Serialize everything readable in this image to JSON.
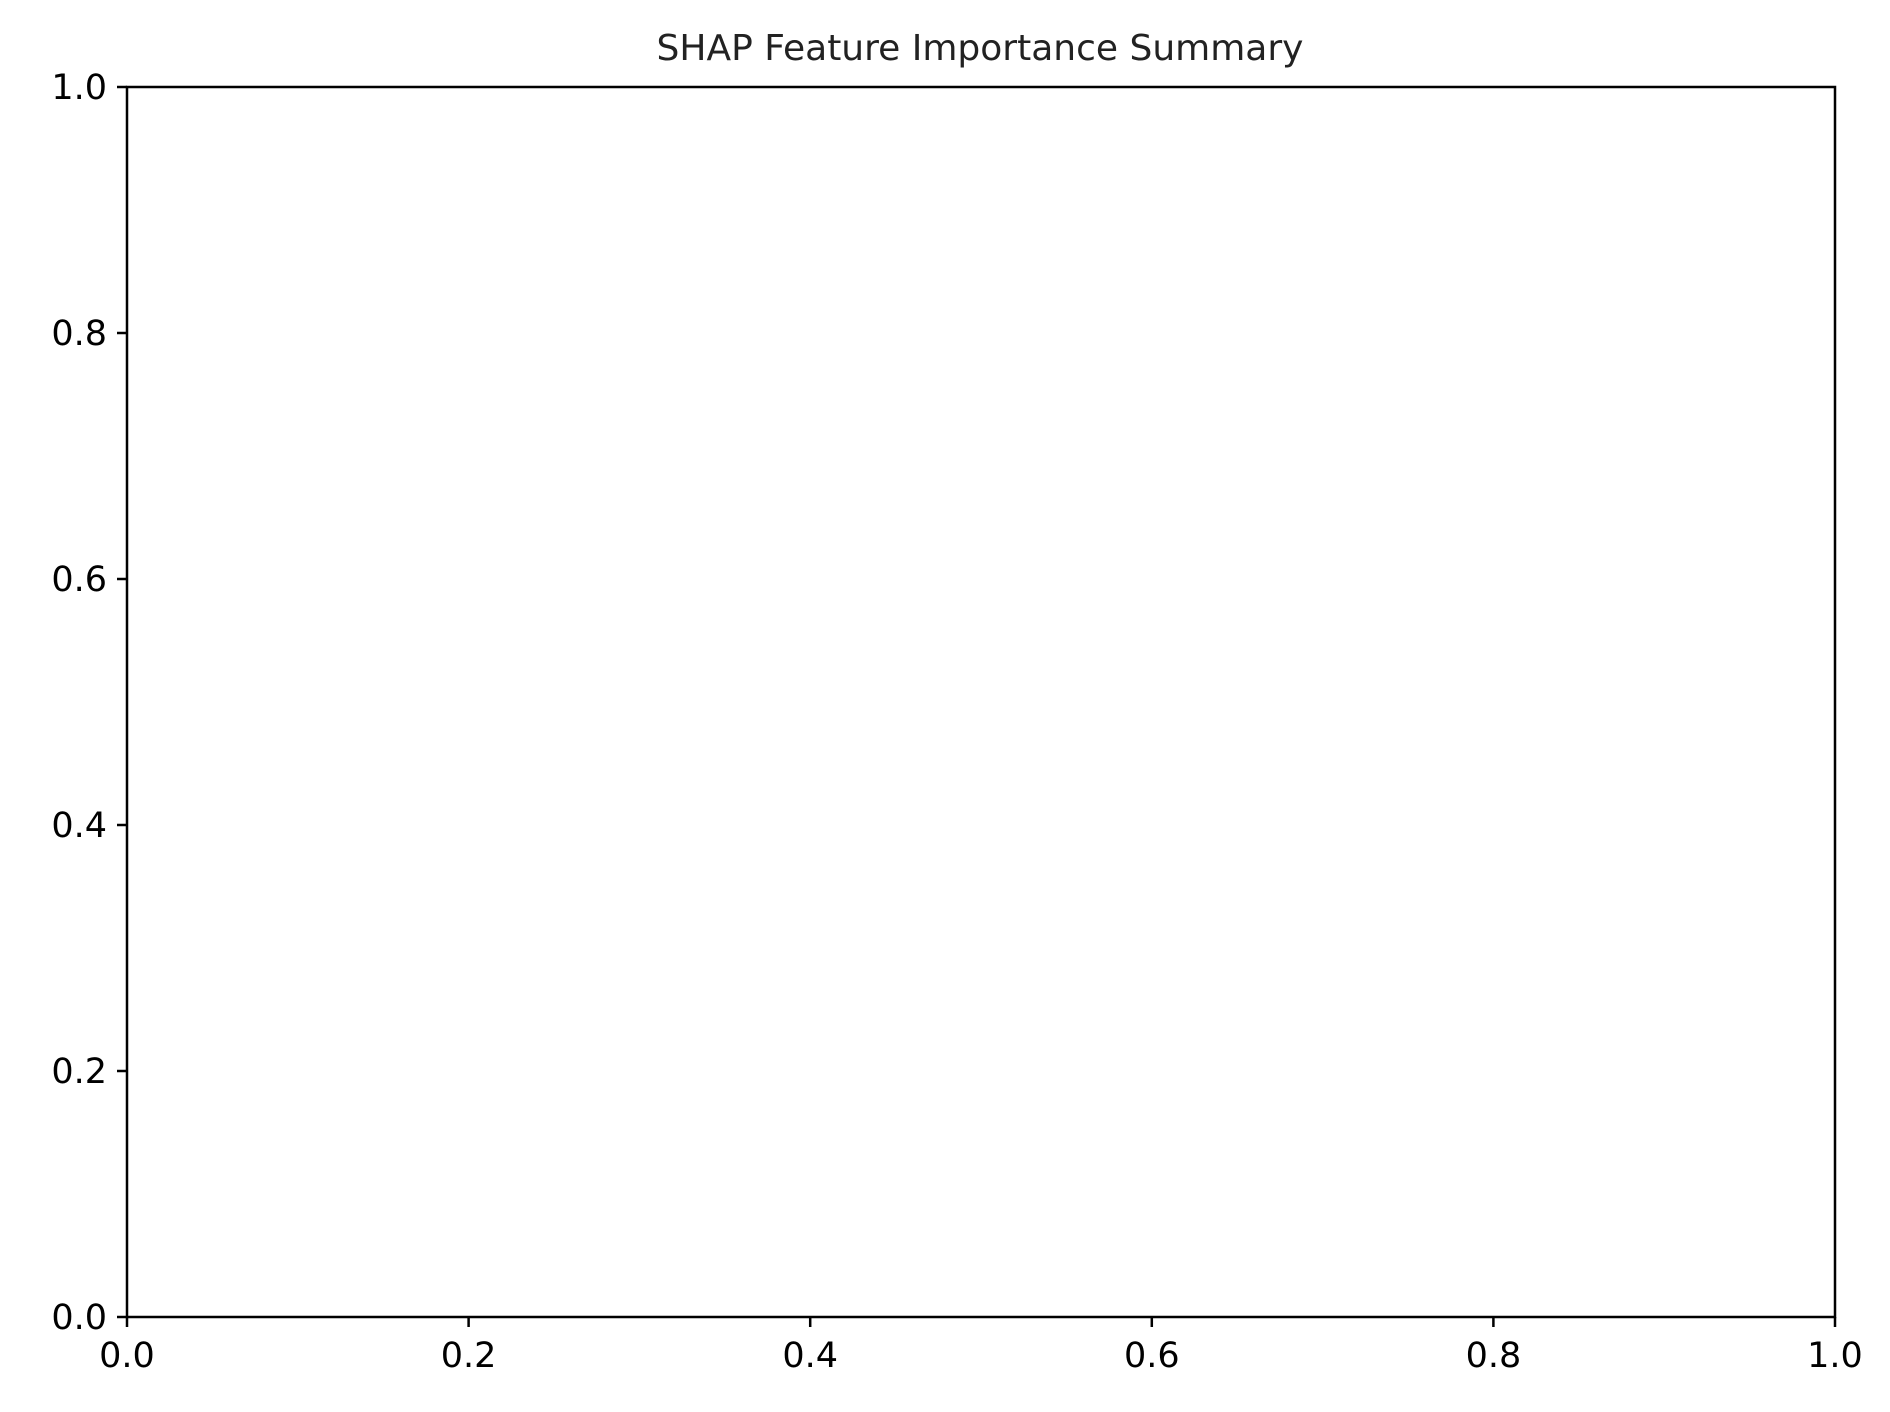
{
  "chart_data": {
    "type": "scatter",
    "title": "SHAP Feature Importance Summary",
    "xlabel": "",
    "ylabel": "",
    "xlim": [
      0.0,
      1.0
    ],
    "ylim": [
      0.0,
      1.0
    ],
    "x_ticks": [
      "0.0",
      "0.2",
      "0.4",
      "0.6",
      "0.8",
      "1.0"
    ],
    "y_ticks": [
      "0.0",
      "0.2",
      "0.4",
      "0.6",
      "0.8",
      "1.0"
    ],
    "grid": false,
    "legend": "none",
    "series": []
  }
}
